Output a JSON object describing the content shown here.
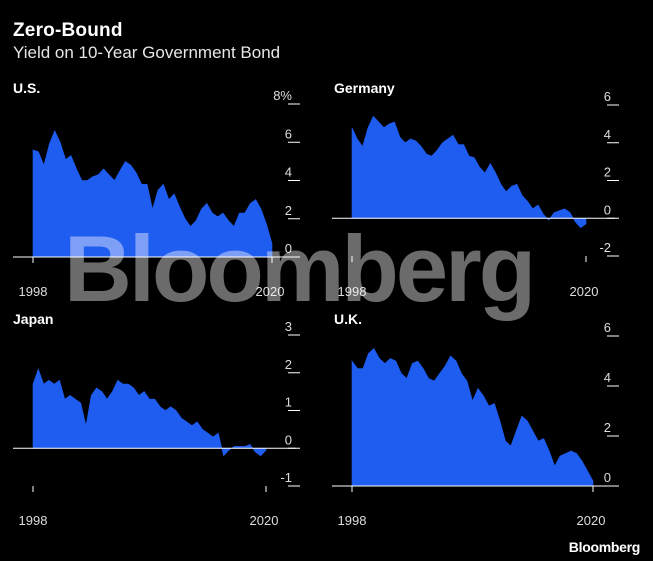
{
  "header": {
    "title": "Zero-Bound",
    "subtitle": "Yield on 10-Year Government Bond"
  },
  "watermark": "Bloomberg",
  "brand": "Bloomberg",
  "colors": {
    "fill": "#1f5cf0",
    "axis": "#ffffff",
    "background": "#000000"
  },
  "chart_data": [
    {
      "type": "area",
      "label": "U.S.",
      "title": "U.S.",
      "xlim": [
        1998,
        2020
      ],
      "ylim": [
        0,
        8
      ],
      "yticks": [
        0,
        2,
        4,
        6,
        8
      ],
      "ytick_labels": [
        "0",
        "2",
        "4",
        "6",
        "8%"
      ],
      "xtick_labels": [
        "1998",
        "2020"
      ],
      "x": [
        1998,
        1998.5,
        1999,
        1999.5,
        2000,
        2000.5,
        2001,
        2001.5,
        2002,
        2002.5,
        2003,
        2003.5,
        2004,
        2004.5,
        2005,
        2005.5,
        2006,
        2006.5,
        2007,
        2007.5,
        2008,
        2008.5,
        2009,
        2009.5,
        2010,
        2010.5,
        2011,
        2011.5,
        2012,
        2012.5,
        2013,
        2013.5,
        2014,
        2014.5,
        2015,
        2015.5,
        2016,
        2016.5,
        2017,
        2017.5,
        2018,
        2018.5,
        2019,
        2019.5,
        2020
      ],
      "values": [
        5.6,
        5.5,
        4.8,
        5.9,
        6.6,
        6.0,
        5.1,
        5.3,
        4.6,
        4.0,
        4.0,
        4.2,
        4.3,
        4.6,
        4.3,
        4.0,
        4.5,
        5.0,
        4.8,
        4.4,
        3.8,
        3.8,
        2.5,
        3.5,
        3.8,
        3.0,
        3.3,
        2.6,
        2.0,
        1.6,
        1.9,
        2.5,
        2.8,
        2.3,
        2.1,
        2.3,
        1.9,
        1.6,
        2.3,
        2.3,
        2.8,
        3.0,
        2.5,
        1.7,
        0.7
      ]
    },
    {
      "type": "area",
      "label": "Germany",
      "title": "Germany",
      "xlim": [
        1998,
        2020
      ],
      "ylim": [
        -2,
        6
      ],
      "yticks": [
        -2,
        0,
        2,
        4,
        6
      ],
      "ytick_labels": [
        "-2",
        "0",
        "2",
        "4",
        "6"
      ],
      "xtick_labels": [
        "1998",
        "2020"
      ],
      "x": [
        1998,
        1998.5,
        1999,
        1999.5,
        2000,
        2000.5,
        2001,
        2001.5,
        2002,
        2002.5,
        2003,
        2003.5,
        2004,
        2004.5,
        2005,
        2005.5,
        2006,
        2006.5,
        2007,
        2007.5,
        2008,
        2008.5,
        2009,
        2009.5,
        2010,
        2010.5,
        2011,
        2011.5,
        2012,
        2012.5,
        2013,
        2013.5,
        2014,
        2014.5,
        2015,
        2015.5,
        2016,
        2016.5,
        2017,
        2017.5,
        2018,
        2018.5,
        2019,
        2019.5,
        2020
      ],
      "values": [
        4.8,
        4.2,
        3.8,
        4.8,
        5.4,
        5.1,
        4.8,
        5.0,
        5.1,
        4.3,
        4.0,
        4.2,
        4.1,
        3.8,
        3.4,
        3.3,
        3.6,
        4.0,
        4.2,
        4.4,
        3.9,
        3.9,
        3.3,
        3.2,
        2.7,
        2.4,
        2.9,
        2.4,
        1.8,
        1.4,
        1.7,
        1.8,
        1.2,
        0.9,
        0.5,
        0.7,
        0.2,
        -0.1,
        0.3,
        0.4,
        0.5,
        0.3,
        -0.2,
        -0.5,
        -0.3
      ]
    },
    {
      "type": "area",
      "label": "Japan",
      "title": "Japan",
      "xlim": [
        1998,
        2020
      ],
      "ylim": [
        -1,
        3
      ],
      "yticks": [
        -1,
        0,
        1,
        2,
        3
      ],
      "ytick_labels": [
        "-1",
        "0",
        "1",
        "2",
        "3"
      ],
      "xtick_labels": [
        "1998",
        "2020"
      ],
      "x": [
        1998,
        1998.5,
        1999,
        1999.5,
        2000,
        2000.5,
        2001,
        2001.5,
        2002,
        2002.5,
        2003,
        2003.5,
        2004,
        2004.5,
        2005,
        2005.5,
        2006,
        2006.5,
        2007,
        2007.5,
        2008,
        2008.5,
        2009,
        2009.5,
        2010,
        2010.5,
        2011,
        2011.5,
        2012,
        2012.5,
        2013,
        2013.5,
        2014,
        2014.5,
        2015,
        2015.5,
        2016,
        2016.5,
        2017,
        2017.5,
        2018,
        2018.5,
        2019,
        2019.5,
        2020
      ],
      "values": [
        1.7,
        2.1,
        1.7,
        1.8,
        1.7,
        1.8,
        1.3,
        1.4,
        1.3,
        1.2,
        0.6,
        1.4,
        1.6,
        1.5,
        1.3,
        1.5,
        1.8,
        1.7,
        1.7,
        1.6,
        1.4,
        1.5,
        1.3,
        1.3,
        1.1,
        1.0,
        1.1,
        1.0,
        0.8,
        0.7,
        0.6,
        0.7,
        0.5,
        0.4,
        0.3,
        0.4,
        -0.2,
        -0.05,
        0.05,
        0.05,
        0.05,
        0.1,
        -0.1,
        -0.2,
        -0.05
      ]
    },
    {
      "type": "area",
      "label": "U.K.",
      "title": "U.K.",
      "xlim": [
        1998,
        2020
      ],
      "ylim": [
        0,
        6
      ],
      "yticks": [
        0,
        2,
        4,
        6
      ],
      "ytick_labels": [
        "0",
        "2",
        "4",
        "6"
      ],
      "xtick_labels": [
        "1998",
        "2020"
      ],
      "x": [
        1998,
        1998.5,
        1999,
        1999.5,
        2000,
        2000.5,
        2001,
        2001.5,
        2002,
        2002.5,
        2003,
        2003.5,
        2004,
        2004.5,
        2005,
        2005.5,
        2006,
        2006.5,
        2007,
        2007.5,
        2008,
        2008.5,
        2009,
        2009.5,
        2010,
        2010.5,
        2011,
        2011.5,
        2012,
        2012.5,
        2013,
        2013.5,
        2014,
        2014.5,
        2015,
        2015.5,
        2016,
        2016.5,
        2017,
        2017.5,
        2018,
        2018.5,
        2019,
        2019.5,
        2020
      ],
      "values": [
        5.0,
        4.7,
        4.7,
        5.3,
        5.5,
        5.1,
        4.9,
        5.1,
        5.0,
        4.5,
        4.3,
        4.9,
        5.0,
        4.7,
        4.3,
        4.2,
        4.5,
        4.8,
        5.2,
        5.0,
        4.5,
        4.2,
        3.4,
        3.9,
        3.6,
        3.2,
        3.3,
        2.6,
        1.8,
        1.6,
        2.2,
        2.8,
        2.6,
        2.2,
        1.8,
        1.9,
        1.4,
        0.8,
        1.2,
        1.3,
        1.4,
        1.3,
        1.0,
        0.6,
        0.2
      ]
    }
  ]
}
